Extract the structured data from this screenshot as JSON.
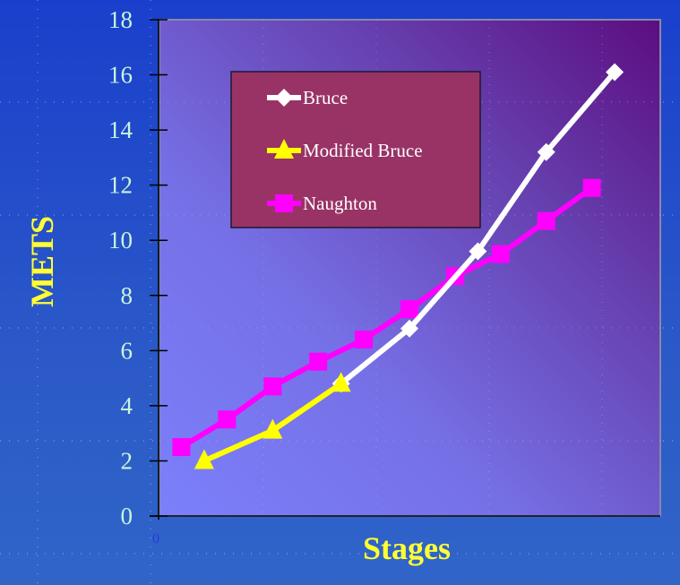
{
  "chart_data": {
    "type": "line",
    "title": "",
    "xlabel": "Stages",
    "ylabel": "METS",
    "ylim": [
      0,
      18
    ],
    "yticks": [
      0,
      2,
      4,
      6,
      8,
      10,
      12,
      14,
      16,
      18
    ],
    "x_origin_label": "0",
    "grid": false,
    "legend_position": "upper-left-inside",
    "series": [
      {
        "name": "Bruce",
        "color": "#ffffff",
        "marker": "diamond",
        "x": [
          4,
          5.5,
          7,
          8.5,
          10
        ],
        "values": [
          4.8,
          6.8,
          9.6,
          13.2,
          16.1
        ]
      },
      {
        "name": "Modified Bruce",
        "color": "#ffff00",
        "marker": "triangle",
        "x": [
          1,
          2.5,
          4
        ],
        "values": [
          2.0,
          3.1,
          4.8
        ]
      },
      {
        "name": "Naughton",
        "color": "#ff00ff",
        "marker": "square",
        "x": [
          0.5,
          1.5,
          2.5,
          3.5,
          4.5,
          5.5,
          6.5,
          7.5,
          8.5,
          9.5
        ],
        "values": [
          2.5,
          3.5,
          4.7,
          5.6,
          6.4,
          7.5,
          8.7,
          9.5,
          10.7,
          11.9
        ]
      }
    ]
  },
  "colors": {
    "background": "#1f4ac8",
    "plot_area_light": "#7b7bf5",
    "plot_area_dark": "#5a0e80",
    "legend_bg": "#993366",
    "tick_label": "#c8f5dc",
    "axis_title": "#ffff33"
  }
}
